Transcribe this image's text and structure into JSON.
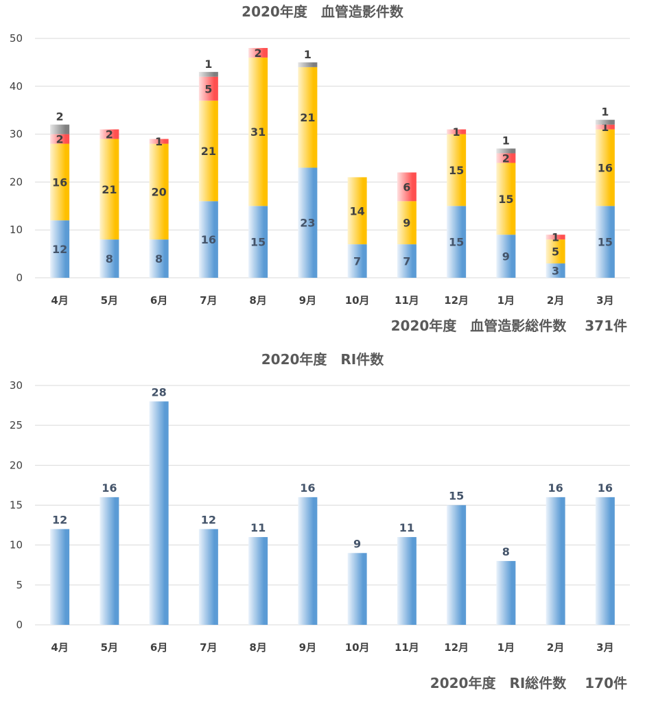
{
  "colors": {
    "blue": "#5b9bd5",
    "yellow": "#ffc000",
    "red": "#ff5b5b",
    "gray": "#7f7f7f",
    "grid": "#d9d9d9",
    "text": "#595959"
  },
  "chart_data": [
    {
      "type": "bar",
      "stacked": true,
      "title": "2020年度　血管造影件数",
      "categories": [
        "4月",
        "5月",
        "6月",
        "7月",
        "8月",
        "9月",
        "10月",
        "11月",
        "12月",
        "1月",
        "2月",
        "3月"
      ],
      "ylim": [
        0,
        50
      ],
      "yticks": [
        "0",
        "10",
        "20",
        "30",
        "40",
        "50"
      ],
      "grid": true,
      "series": [
        {
          "color_key": "blue",
          "values": [
            12,
            8,
            8,
            16,
            15,
            23,
            7,
            7,
            15,
            9,
            3,
            15
          ]
        },
        {
          "color_key": "yellow",
          "values": [
            16,
            21,
            20,
            21,
            31,
            21,
            14,
            9,
            15,
            15,
            5,
            16
          ]
        },
        {
          "color_key": "red",
          "values": [
            2,
            2,
            1,
            5,
            2,
            0,
            0,
            6,
            1,
            2,
            1,
            1
          ]
        },
        {
          "color_key": "gray",
          "values": [
            2,
            0,
            0,
            1,
            0,
            1,
            0,
            0,
            0,
            1,
            0,
            1
          ]
        }
      ],
      "total_text": "2020年度　血管造影総件数　 371件"
    },
    {
      "type": "bar",
      "title": "2020年度　RI件数",
      "categories": [
        "4月",
        "5月",
        "6月",
        "7月",
        "8月",
        "9月",
        "10月",
        "11月",
        "12月",
        "1月",
        "2月",
        "3月"
      ],
      "ylim": [
        0,
        30
      ],
      "yticks": [
        "0",
        "5",
        "10",
        "15",
        "20",
        "25",
        "30"
      ],
      "grid": true,
      "series": [
        {
          "color_key": "blue",
          "values": [
            12,
            16,
            28,
            12,
            11,
            16,
            9,
            11,
            15,
            8,
            16,
            16
          ]
        }
      ],
      "total_text": "2020年度　RI総件数　 170件"
    }
  ]
}
